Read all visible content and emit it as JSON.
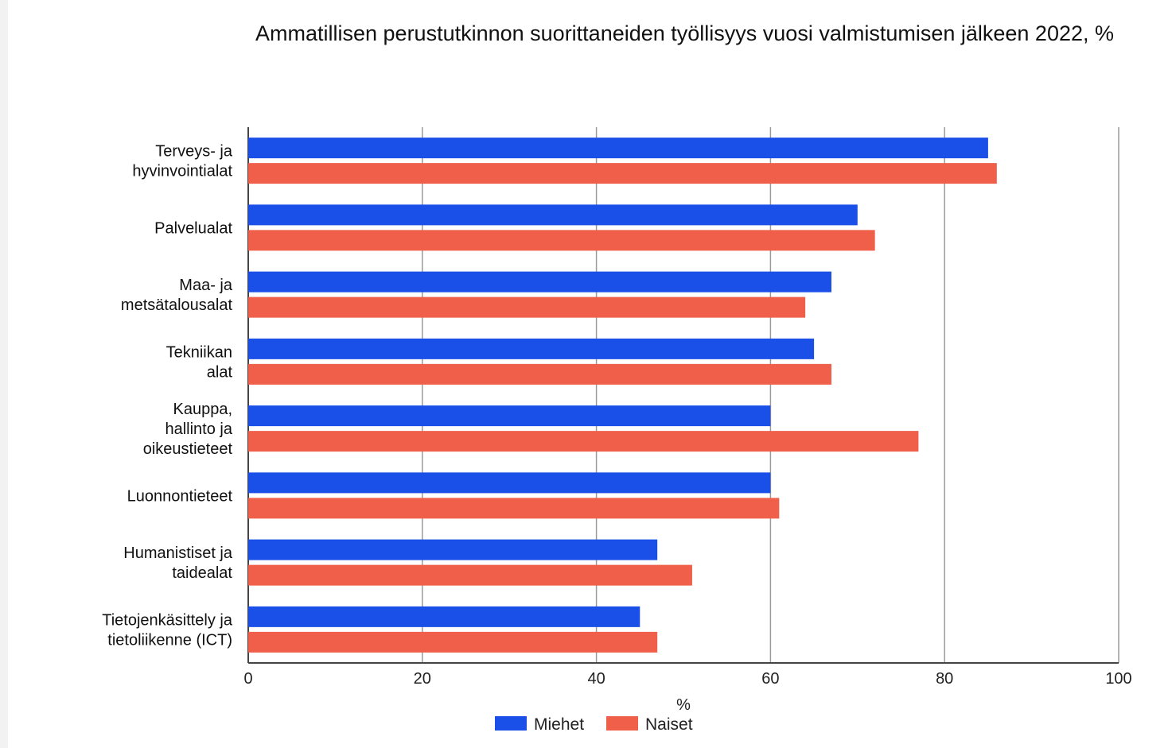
{
  "chart_data": {
    "type": "bar",
    "orientation": "horizontal",
    "title": "Ammatillisen perustutkinnon suorittaneiden työllisyys vuosi valmistumisen jälkeen 2022, %",
    "xlabel": "%",
    "ylabel": "",
    "xlim": [
      0,
      100
    ],
    "xticks": [
      "0",
      "20",
      "40",
      "60",
      "80",
      "100"
    ],
    "grid": true,
    "legend_position": "bottom",
    "categories": [
      [
        "Terveys- ja",
        "hyvinvointialat"
      ],
      [
        "Palvelualat"
      ],
      [
        "Maa- ja",
        "metsätalousalat"
      ],
      [
        "Tekniikan",
        "alat"
      ],
      [
        "Kauppa,",
        "hallinto ja",
        "oikeustieteet"
      ],
      [
        "Luonnontieteet"
      ],
      [
        "Humanistiset ja",
        "taidealat"
      ],
      [
        "Tietojenkäsittely ja",
        "tietoliikenne (ICT)"
      ]
    ],
    "series": [
      {
        "name": "Miehet",
        "color": "#1a4fe8",
        "values": [
          85,
          70,
          67,
          65,
          60,
          60,
          47,
          45
        ]
      },
      {
        "name": "Naiset",
        "color": "#ef5f4a",
        "values": [
          86,
          72,
          64,
          67,
          77,
          61,
          51,
          47
        ]
      }
    ]
  }
}
